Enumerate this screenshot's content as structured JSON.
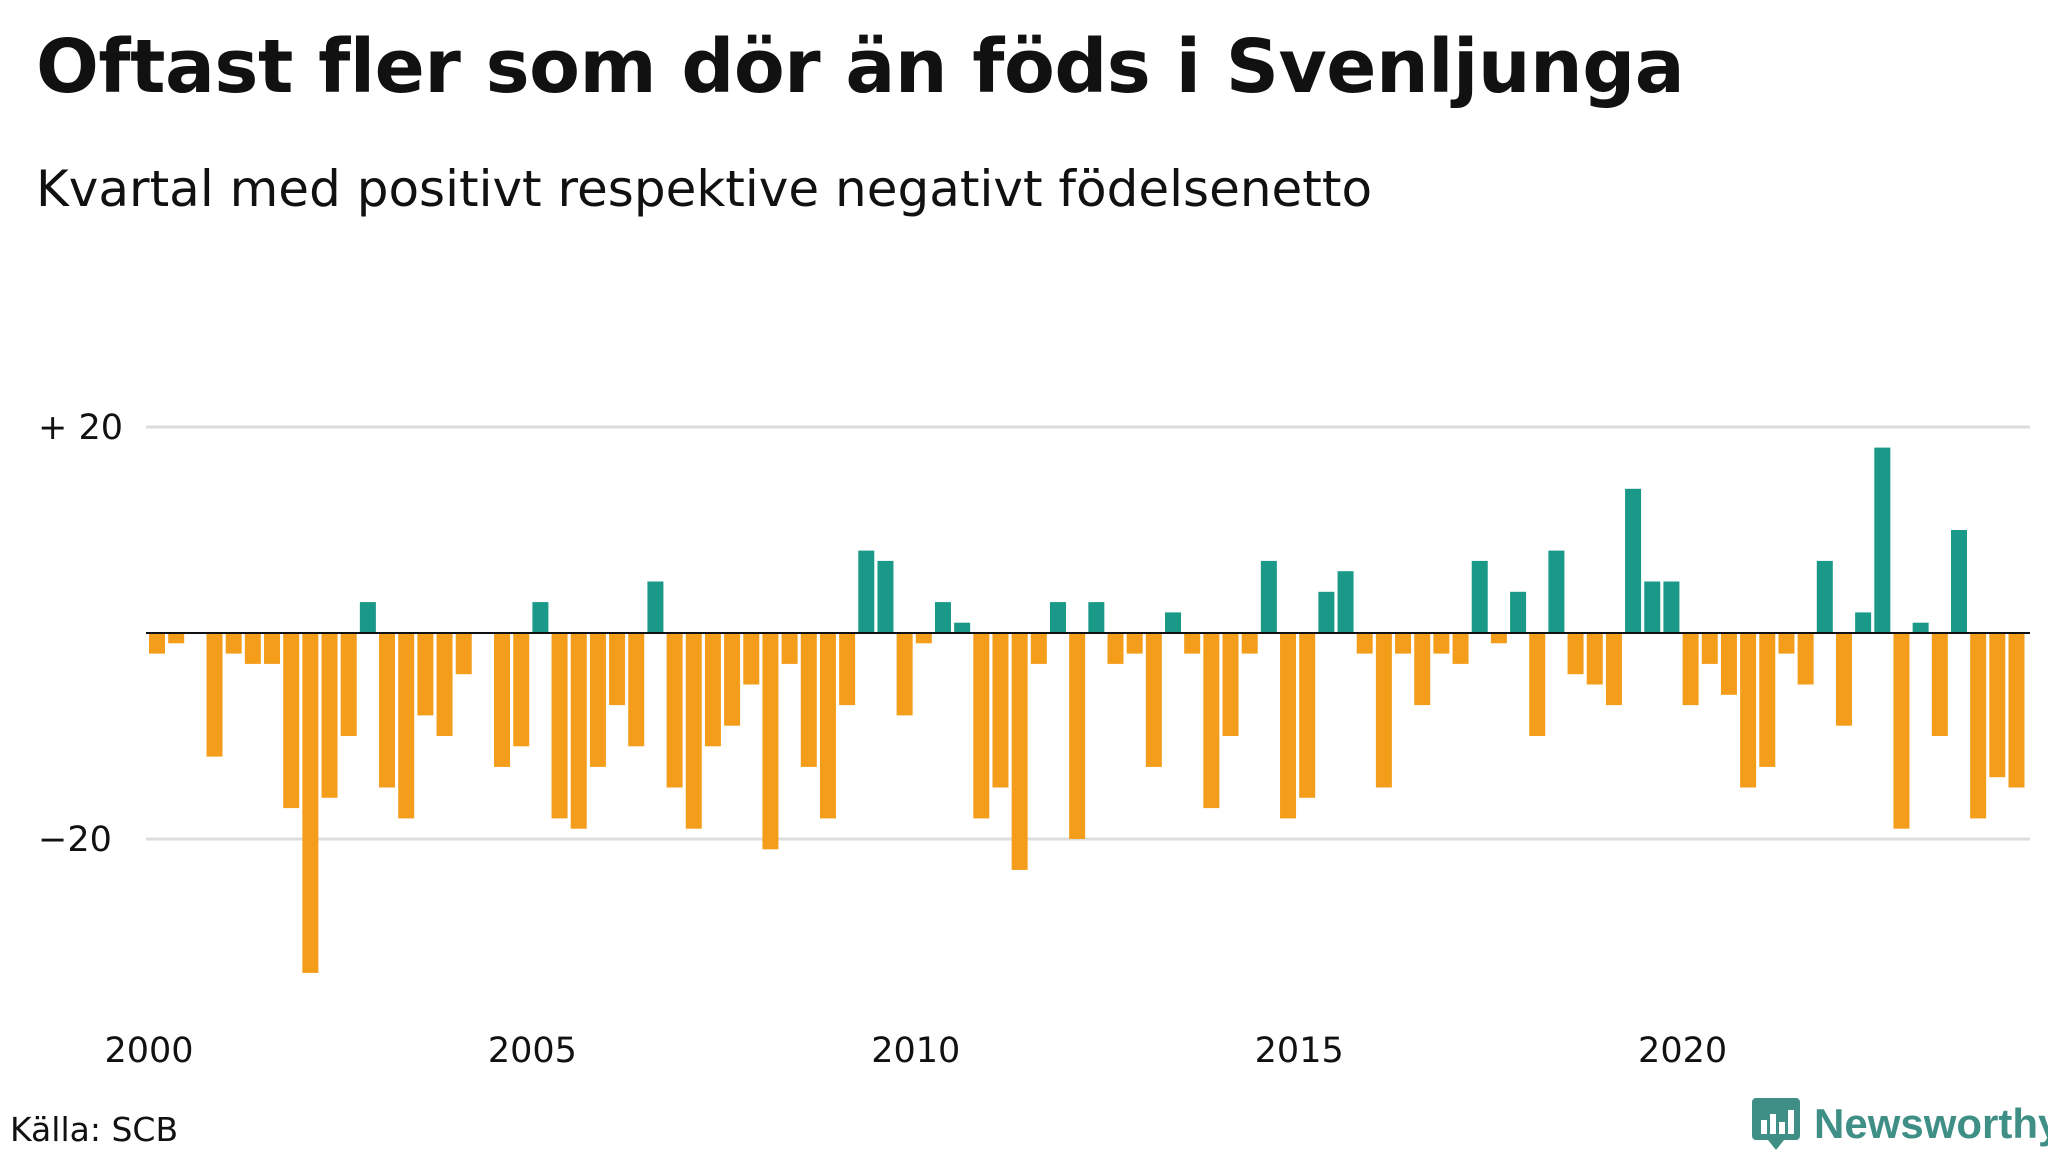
{
  "header": {
    "title": "Oftast fler som dör än föds i Svenljunga",
    "subtitle": "Kvartal med positivt respektive negativt födelsenetto"
  },
  "footer": {
    "source": "Källa: SCB",
    "brand": "Newsworthy",
    "brand_icon": "bar-chart-icon"
  },
  "colors": {
    "positive": "#1a9988",
    "negative": "#f49d1a",
    "grid": "#dddddd",
    "baseline": "#111111",
    "brand": "#3f8f86"
  },
  "chart_data": {
    "type": "bar",
    "x_start": "2000 Q1",
    "x_ticks": [
      "2000",
      "2005",
      "2010",
      "2015",
      "2020"
    ],
    "y_ticks": [
      {
        "value": 20,
        "label": "+ 20"
      },
      {
        "value": -20,
        "label": "−20"
      }
    ],
    "ylim": [
      -35,
      20
    ],
    "grid": true,
    "values": [
      -2,
      -1,
      0,
      -12,
      -2,
      -3,
      -3,
      -17,
      -33,
      -16,
      -10,
      3,
      -15,
      -18,
      -8,
      -10,
      -4,
      0,
      -13,
      -11,
      3,
      -18,
      -19,
      -13,
      -7,
      -11,
      5,
      -15,
      -19,
      -11,
      -9,
      -5,
      -21,
      -3,
      -13,
      -18,
      -7,
      8,
      7,
      -8,
      -1,
      3,
      1,
      -18,
      -15,
      -23,
      -3,
      3,
      -20,
      3,
      -3,
      -2,
      -13,
      2,
      -2,
      -17,
      -10,
      -2,
      7,
      -18,
      -16,
      4,
      6,
      -2,
      -15,
      -2,
      -7,
      -2,
      -3,
      7,
      -1,
      4,
      -10,
      8,
      -4,
      -5,
      -7,
      14,
      5,
      5,
      -7,
      -3,
      -6,
      -15,
      -13,
      -2,
      -5,
      7,
      -9,
      2,
      18,
      -19,
      1,
      -10,
      10,
      -18,
      -14,
      -15
    ]
  }
}
